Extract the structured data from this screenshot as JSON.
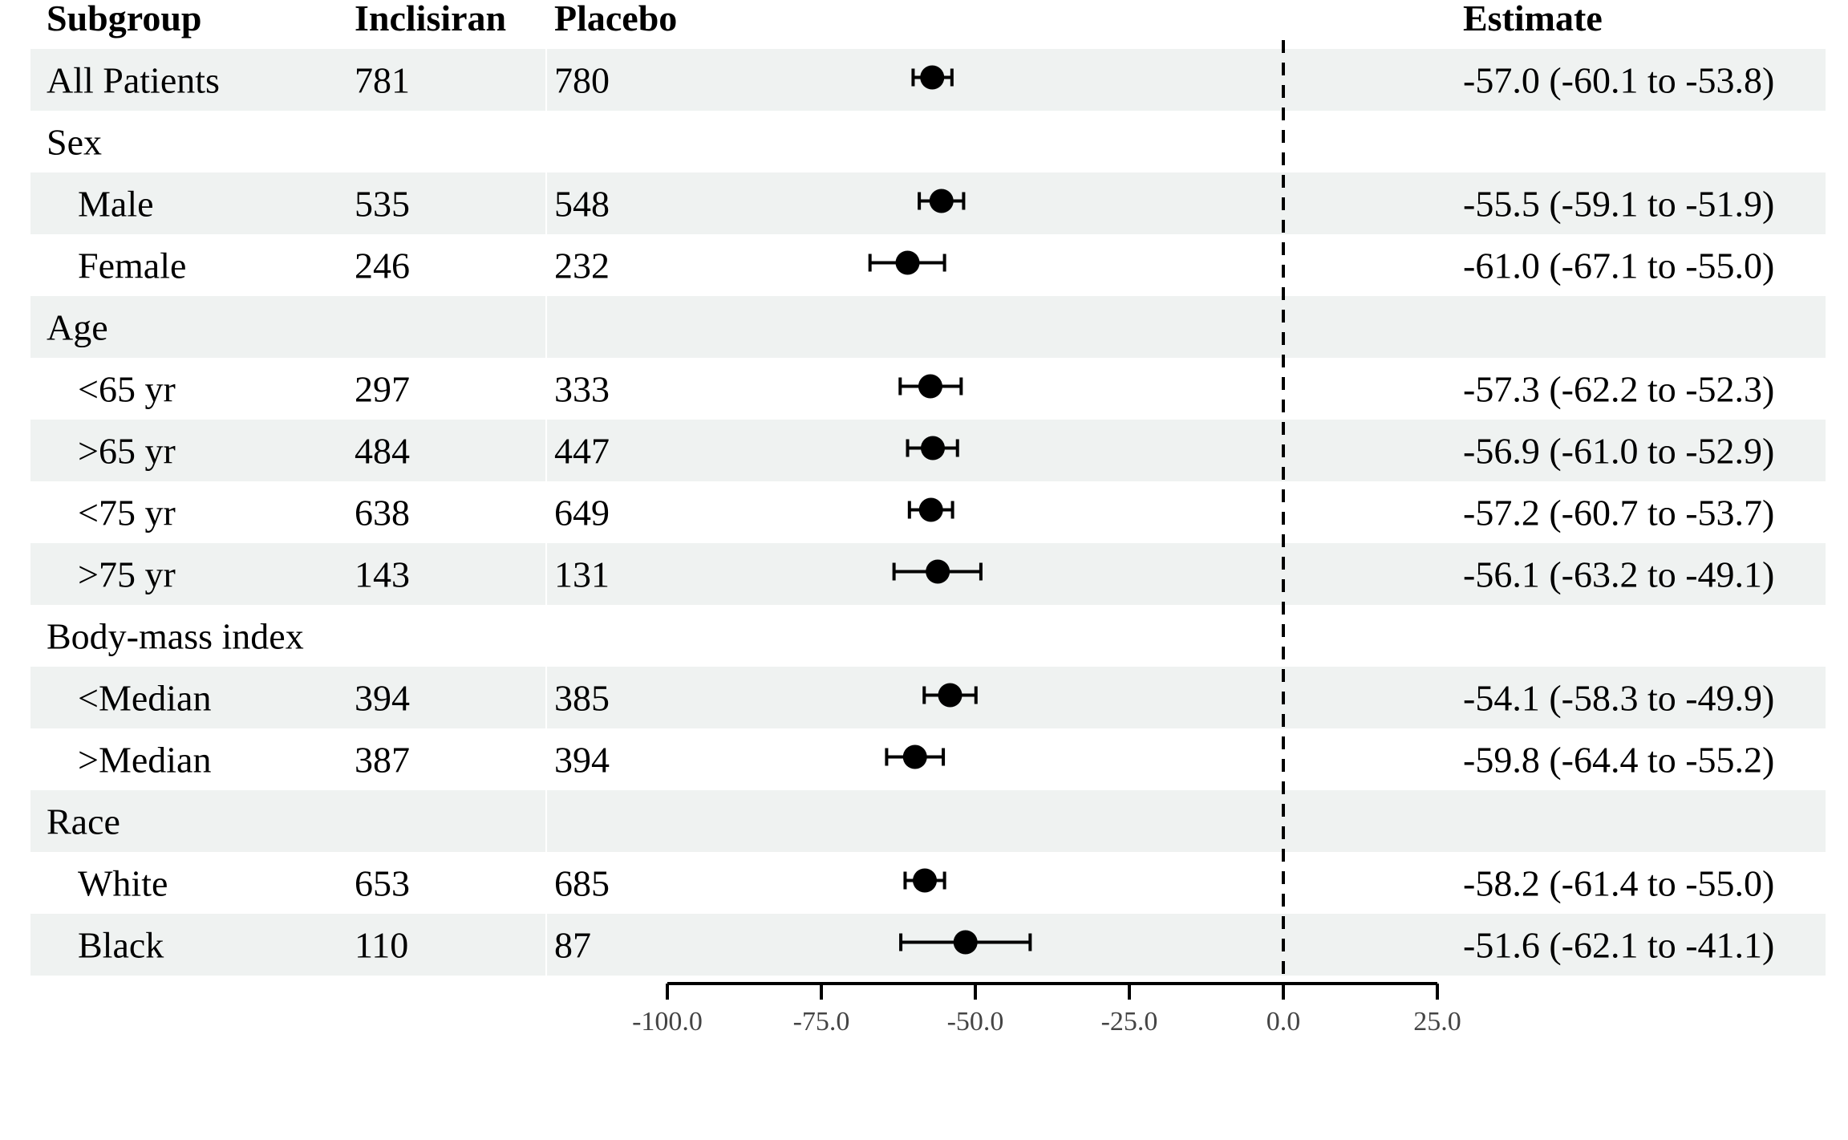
{
  "headers": {
    "subgroup": "Subgroup",
    "inclisiran": "Inclisiran",
    "placebo": "Placebo",
    "estimate": "Estimate"
  },
  "chart_data": {
    "type": "forest",
    "title": "",
    "xlabel": "",
    "xlim": [
      -100,
      25
    ],
    "reference_line": 0,
    "x_ticks": [
      -100,
      -75,
      -50,
      -25,
      0,
      25
    ],
    "x_tick_labels": [
      "-100.0",
      "-75.0",
      "-50.0",
      "-25.0",
      "0.0",
      "25.0"
    ],
    "rows": [
      {
        "label": "All Patients",
        "indent": false,
        "inclisiran": "781",
        "placebo": "780",
        "estimate": -57.0,
        "lower": -60.1,
        "upper": -53.8,
        "estimate_text": "-57.0 (-60.1 to -53.8)"
      },
      {
        "label": "Sex",
        "indent": false,
        "inclisiran": "",
        "placebo": "",
        "estimate": null,
        "lower": null,
        "upper": null,
        "estimate_text": ""
      },
      {
        "label": "Male",
        "indent": true,
        "inclisiran": "535",
        "placebo": "548",
        "estimate": -55.5,
        "lower": -59.1,
        "upper": -51.9,
        "estimate_text": "-55.5 (-59.1 to -51.9)"
      },
      {
        "label": "Female",
        "indent": true,
        "inclisiran": "246",
        "placebo": "232",
        "estimate": -61.0,
        "lower": -67.1,
        "upper": -55.0,
        "estimate_text": "-61.0 (-67.1 to -55.0)"
      },
      {
        "label": "Age",
        "indent": false,
        "inclisiran": "",
        "placebo": "",
        "estimate": null,
        "lower": null,
        "upper": null,
        "estimate_text": ""
      },
      {
        "label": "<65 yr",
        "indent": true,
        "inclisiran": "297",
        "placebo": "333",
        "estimate": -57.3,
        "lower": -62.2,
        "upper": -52.3,
        "estimate_text": "-57.3 (-62.2 to -52.3)"
      },
      {
        "label": ">65 yr",
        "indent": true,
        "inclisiran": "484",
        "placebo": "447",
        "estimate": -56.9,
        "lower": -61.0,
        "upper": -52.9,
        "estimate_text": "-56.9 (-61.0 to -52.9)"
      },
      {
        "label": "<75 yr",
        "indent": true,
        "inclisiran": "638",
        "placebo": "649",
        "estimate": -57.2,
        "lower": -60.7,
        "upper": -53.7,
        "estimate_text": "-57.2 (-60.7 to -53.7)"
      },
      {
        "label": ">75 yr",
        "indent": true,
        "inclisiran": "143",
        "placebo": "131",
        "estimate": -56.1,
        "lower": -63.2,
        "upper": -49.1,
        "estimate_text": "-56.1 (-63.2 to -49.1)"
      },
      {
        "label": "Body-mass index",
        "indent": false,
        "inclisiran": "",
        "placebo": "",
        "estimate": null,
        "lower": null,
        "upper": null,
        "estimate_text": ""
      },
      {
        "label": "<Median",
        "indent": true,
        "inclisiran": "394",
        "placebo": "385",
        "estimate": -54.1,
        "lower": -58.3,
        "upper": -49.9,
        "estimate_text": "-54.1 (-58.3 to -49.9)"
      },
      {
        "label": ">Median",
        "indent": true,
        "inclisiran": "387",
        "placebo": "394",
        "estimate": -59.8,
        "lower": -64.4,
        "upper": -55.2,
        "estimate_text": "-59.8 (-64.4 to -55.2)"
      },
      {
        "label": "Race",
        "indent": false,
        "inclisiran": "",
        "placebo": "",
        "estimate": null,
        "lower": null,
        "upper": null,
        "estimate_text": ""
      },
      {
        "label": "White",
        "indent": true,
        "inclisiran": "653",
        "placebo": "685",
        "estimate": -58.2,
        "lower": -61.4,
        "upper": -55.0,
        "estimate_text": "-58.2 (-61.4 to -55.0)"
      },
      {
        "label": "Black",
        "indent": true,
        "inclisiran": "110",
        "placebo": "87",
        "estimate": -51.6,
        "lower": -62.1,
        "upper": -41.1,
        "estimate_text": "-51.6 (-62.1 to -41.1)"
      }
    ],
    "colors": {
      "stripe": "#eff2f1",
      "marker": "#000000",
      "tick_text": "#444444"
    }
  }
}
